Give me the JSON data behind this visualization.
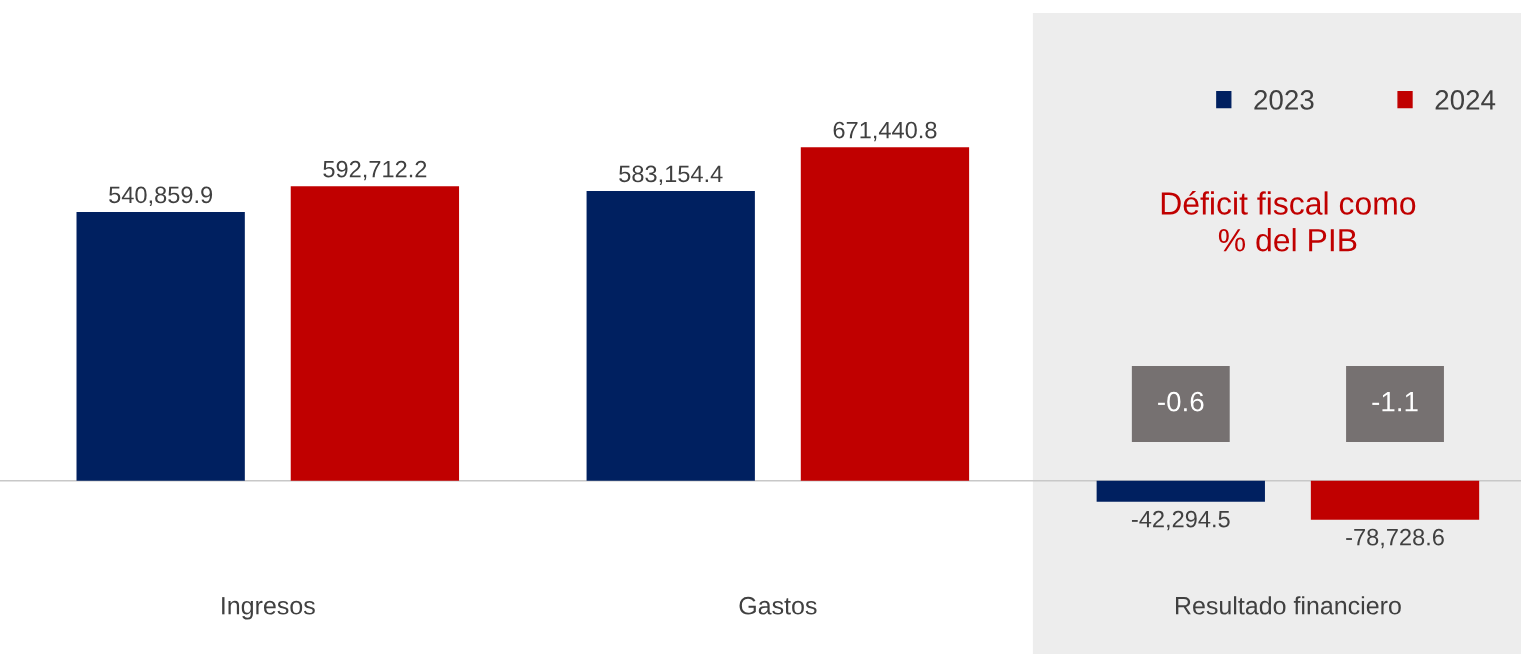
{
  "chart_data": {
    "type": "bar",
    "categories": [
      "Ingresos",
      "Gastos",
      "Resultado financiero"
    ],
    "series": [
      {
        "name": "2023",
        "color": "#002060",
        "values": [
          540859.9,
          583154.4,
          -42294.5
        ],
        "value_labels": [
          "540,859.9",
          "583,154.4",
          "-42,294.5"
        ]
      },
      {
        "name": "2024",
        "color": "#c00000",
        "values": [
          592712.2,
          671440.8,
          -78728.6
        ],
        "value_labels": [
          "592,712.2",
          "671,440.8",
          "-78,728.6"
        ]
      }
    ],
    "bands": [
      {
        "axis": "x",
        "from": "Resultado financiero",
        "to": "Resultado financiero",
        "color": "#ededed"
      }
    ],
    "annotations": [
      "Déficit fiscal como % del PIB",
      "-0.6",
      "-1.1"
    ],
    "legend": "top right"
  }
}
